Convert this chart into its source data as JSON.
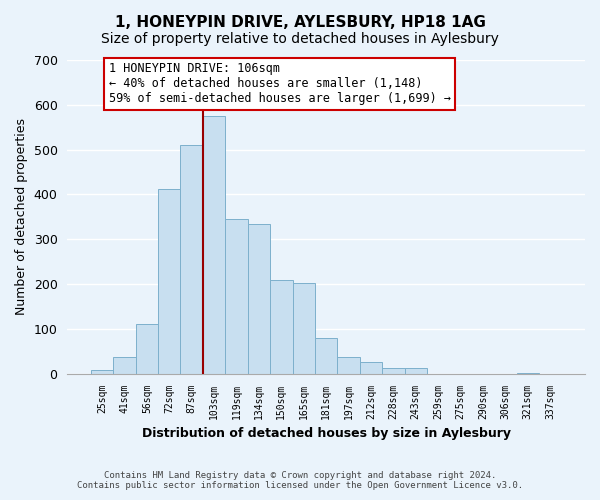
{
  "title": "1, HONEYPIN DRIVE, AYLESBURY, HP18 1AG",
  "subtitle": "Size of property relative to detached houses in Aylesbury",
  "xlabel": "Distribution of detached houses by size in Aylesbury",
  "ylabel": "Number of detached properties",
  "bar_labels": [
    "25sqm",
    "41sqm",
    "56sqm",
    "72sqm",
    "87sqm",
    "103sqm",
    "119sqm",
    "134sqm",
    "150sqm",
    "165sqm",
    "181sqm",
    "197sqm",
    "212sqm",
    "228sqm",
    "243sqm",
    "259sqm",
    "275sqm",
    "290sqm",
    "306sqm",
    "321sqm",
    "337sqm"
  ],
  "bar_values": [
    8,
    38,
    112,
    413,
    510,
    575,
    345,
    333,
    210,
    202,
    80,
    37,
    26,
    12,
    12,
    0,
    0,
    0,
    0,
    2,
    0
  ],
  "bar_color": "#c8dff0",
  "bar_edge_color": "#7db0cc",
  "vline_color": "#990000",
  "annotation_title": "1 HONEYPIN DRIVE: 106sqm",
  "annotation_line1": "← 40% of detached houses are smaller (1,148)",
  "annotation_line2": "59% of semi-detached houses are larger (1,699) →",
  "annotation_box_color": "#ffffff",
  "annotation_box_edge": "#cc0000",
  "ylim": [
    0,
    700
  ],
  "yticks": [
    0,
    100,
    200,
    300,
    400,
    500,
    600,
    700
  ],
  "footer_line1": "Contains HM Land Registry data © Crown copyright and database right 2024.",
  "footer_line2": "Contains public sector information licensed under the Open Government Licence v3.0.",
  "background_color": "#eaf3fb",
  "grid_color": "#ffffff"
}
